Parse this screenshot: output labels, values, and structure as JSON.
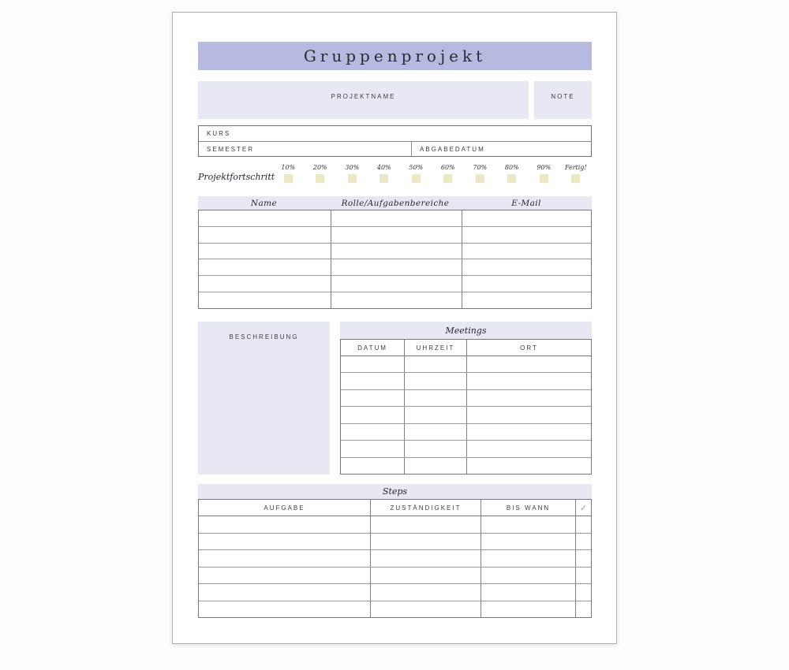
{
  "document": {
    "title": "Gruppenprojekt"
  },
  "header_fields": {
    "projektname_label": "PROJEKTNAME",
    "projektname_value": "",
    "note_label": "NOTE",
    "note_value": "",
    "kurs_label": "KURS",
    "kurs_value": "",
    "semester_label": "SEMESTER",
    "semester_value": "",
    "abgabedatum_label": "ABGABEDATUM",
    "abgabedatum_value": ""
  },
  "progress": {
    "label": "Projektfortschritt",
    "steps": [
      "10%",
      "20%",
      "30%",
      "40%",
      "50%",
      "60%",
      "70%",
      "80%",
      "90%",
      "Fertig!"
    ],
    "checked": [
      false,
      false,
      false,
      false,
      false,
      false,
      false,
      false,
      false,
      false
    ]
  },
  "members_table": {
    "headers": [
      "Name",
      "Rolle/Aufgabenbereiche",
      "E-Mail"
    ],
    "row_count": 6,
    "rows": []
  },
  "description": {
    "label": "BESCHREIBUNG",
    "value": ""
  },
  "meetings_table": {
    "title": "Meetings",
    "headers": [
      "DATUM",
      "UHRZEIT",
      "ORT"
    ],
    "row_count": 7,
    "rows": []
  },
  "steps_table": {
    "title": "Steps",
    "headers": [
      "AUFGABE",
      "ZUSTÄNDIGKEIT",
      "BIS WANN"
    ],
    "check_column_icon": "✓",
    "row_count": 6,
    "rows": []
  },
  "colors": {
    "title_band": "#b6bae0",
    "light_panel": "#e8e8f4",
    "progress_checkbox": "#ebe9c1",
    "table_border": "#767676",
    "page_background": "#ffffff"
  }
}
